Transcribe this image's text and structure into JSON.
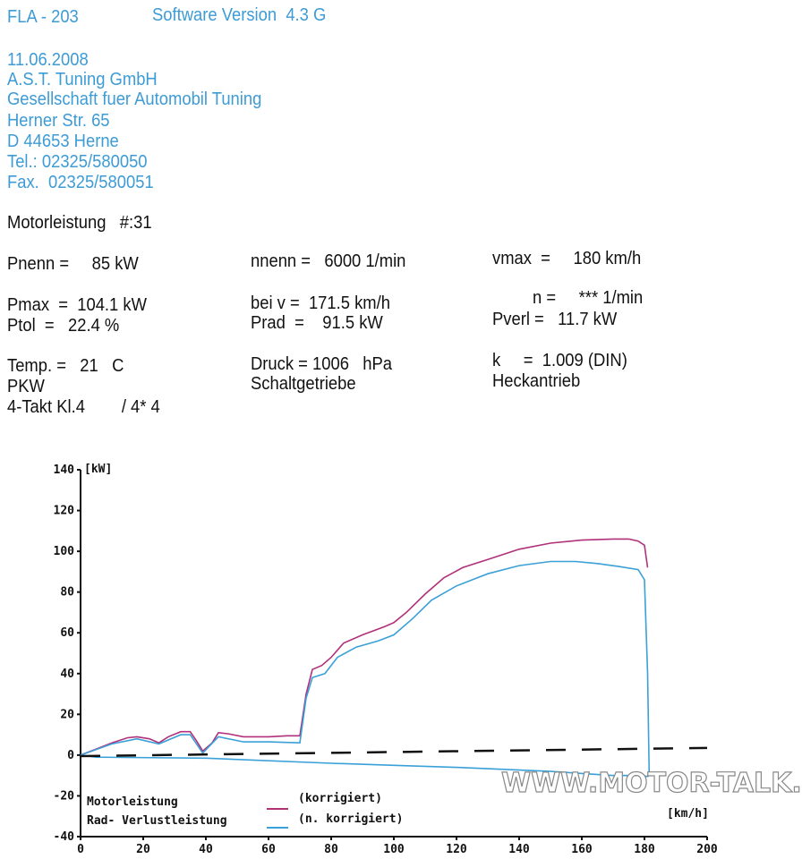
{
  "header": {
    "device": "FLA - 203",
    "software": "Software Version  4.3 G"
  },
  "address": {
    "date": "11.06.2008",
    "company": "A.S.T. Tuning GmbH",
    "company_full": "Gesellschaft fuer Automobil Tuning",
    "street": "Herner Str. 65",
    "city": "D 44653 Herne",
    "tel": "Tel.: 02325/580050",
    "fax": "Fax.  02325/580051"
  },
  "report": {
    "title": "Motorleistung   #:31",
    "pnenn": "Pnenn =     85 kW",
    "nnenn": "nnenn =   6000 1/min",
    "vmax": "vmax  =     180 km/h",
    "pmax": "Pmax  =  104.1 kW",
    "bei_v": "bei v =  171.5 km/h",
    "n": "n =     *** 1/min",
    "ptol": "Ptol  =   22.4 %",
    "prad": "Prad  =    91.5 kW",
    "pverl": "Pverl =   11.7 kW",
    "temp": "Temp. =   21   C",
    "druck": "Druck = 1006   hPa",
    "k": "k     =  1.009 (DIN)",
    "pkw": "PKW",
    "getriebe": "Schaltgetriebe",
    "antrieb": "Heckantrieb",
    "motor": "4-Takt Kl.4        / 4* 4"
  },
  "chart_data": {
    "type": "line",
    "ylabel": "[kW]",
    "xlabel": "[km/h]",
    "xlim": [
      0,
      200
    ],
    "ylim": [
      -40,
      140
    ],
    "xticks": [
      "0",
      "20",
      "40",
      "60",
      "80",
      "100",
      "120",
      "140",
      "160",
      "180",
      "200"
    ],
    "yticks": [
      "140",
      "120",
      "100",
      "80",
      "60",
      "40",
      "20",
      "0",
      "-20",
      "-40"
    ],
    "grid": false,
    "legend": {
      "row1": "Motorleistung",
      "row2": "Rad- Verlustleistung",
      "corr": "(korrigiert)",
      "ncorr": "(n. korrigiert)"
    },
    "colors": {
      "korrigiert": "#b0307a",
      "n_korrigiert": "#3aa0d8",
      "schlepp": "#111111"
    },
    "series": [
      {
        "key": "korrigiert",
        "points": [
          [
            0,
            0
          ],
          [
            5,
            3
          ],
          [
            10,
            6
          ],
          [
            15,
            8.5
          ],
          [
            18,
            9
          ],
          [
            22,
            8
          ],
          [
            25,
            6
          ],
          [
            28,
            9
          ],
          [
            32,
            11.5
          ],
          [
            35,
            11.5
          ],
          [
            37,
            7
          ],
          [
            39,
            2
          ],
          [
            42,
            6
          ],
          [
            44,
            11
          ],
          [
            47,
            10.5
          ],
          [
            52,
            9
          ],
          [
            60,
            9
          ],
          [
            66,
            9.5
          ],
          [
            70,
            9.5
          ],
          [
            72,
            30
          ],
          [
            74,
            42
          ],
          [
            77,
            44
          ],
          [
            80,
            48
          ],
          [
            84,
            55
          ],
          [
            90,
            59
          ],
          [
            97,
            63
          ],
          [
            100,
            65
          ],
          [
            104,
            70
          ],
          [
            110,
            79
          ],
          [
            116,
            87
          ],
          [
            122,
            92
          ],
          [
            130,
            96
          ],
          [
            140,
            101
          ],
          [
            150,
            104
          ],
          [
            160,
            105.5
          ],
          [
            170,
            106
          ],
          [
            175,
            106
          ],
          [
            178,
            105
          ],
          [
            180,
            103
          ],
          [
            181,
            92
          ]
        ]
      },
      {
        "key": "n_korrigiert",
        "points": [
          [
            0,
            0
          ],
          [
            10,
            5.5
          ],
          [
            18,
            8
          ],
          [
            25,
            5.5
          ],
          [
            32,
            10
          ],
          [
            35,
            10
          ],
          [
            39,
            1
          ],
          [
            44,
            9
          ],
          [
            52,
            6.5
          ],
          [
            60,
            6.5
          ],
          [
            70,
            6
          ],
          [
            72,
            28
          ],
          [
            74,
            38
          ],
          [
            78,
            40
          ],
          [
            82,
            48
          ],
          [
            88,
            53
          ],
          [
            95,
            56
          ],
          [
            100,
            59
          ],
          [
            106,
            67
          ],
          [
            112,
            76
          ],
          [
            120,
            83
          ],
          [
            130,
            89
          ],
          [
            140,
            93
          ],
          [
            150,
            95
          ],
          [
            158,
            95
          ],
          [
            165,
            94
          ],
          [
            172,
            92.5
          ],
          [
            178,
            91
          ],
          [
            180,
            86
          ],
          [
            181,
            40
          ],
          [
            181.5,
            -10
          ],
          [
            181,
            -10.5
          ],
          [
            179,
            -10
          ],
          [
            170,
            -10
          ],
          [
            150,
            -8
          ],
          [
            120,
            -6
          ],
          [
            100,
            -5
          ],
          [
            80,
            -4
          ],
          [
            40,
            -1.5
          ],
          [
            5,
            -1
          ],
          [
            0,
            0
          ]
        ]
      },
      {
        "key": "schlepp",
        "dashed": true,
        "points": [
          [
            0,
            -0.5
          ],
          [
            200,
            3.5
          ]
        ]
      }
    ]
  },
  "watermark": "WWW.MOTOR-TALK.de"
}
